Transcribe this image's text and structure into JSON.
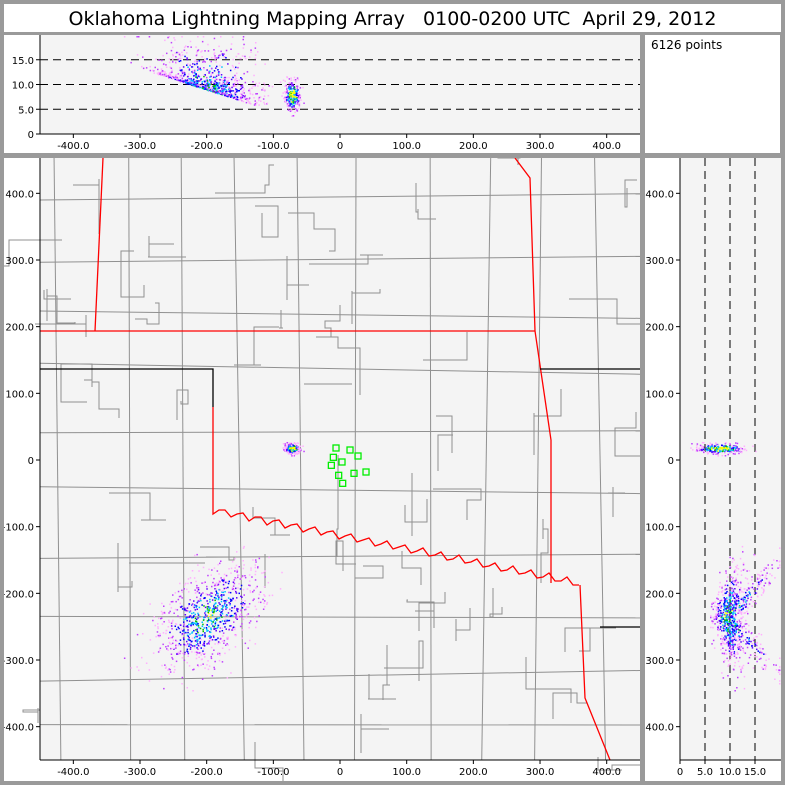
{
  "title": "Oklahoma Lightning Mapping Array   0100-0200 UTC  April 29, 2012",
  "point_count": "6126 points",
  "colors": {
    "density": [
      "#ffb0ff",
      "#c040ff",
      "#6000ff",
      "#0000ff",
      "#00c0ff",
      "#00c000",
      "#ffff00"
    ],
    "state_border": "#ff0000",
    "county_border": "#909090",
    "stations": "#00ee00"
  },
  "chart_data": [
    {
      "type": "scatter",
      "panel": "plan-view",
      "xlim": [
        -450,
        450
      ],
      "ylim": [
        -450,
        450
      ],
      "xticks": [
        "-400.0",
        "-300.0",
        "-200.0",
        "-100.0",
        "0",
        "100.0",
        "200.0",
        "300.0",
        "400.0"
      ],
      "yticks": [
        "-400.0",
        "-300.0",
        "-200.0",
        "-100.0",
        "0",
        "100.0",
        "200.0",
        "300.0",
        "400.0"
      ],
      "clusters": [
        {
          "x_center": -200,
          "y_center": -235,
          "x_spread": 35,
          "y_spread": 40
        },
        {
          "x_center": -72,
          "y_center": 18,
          "x_spread": 6,
          "y_spread": 4
        }
      ],
      "stations": [
        [
          -6,
          18
        ],
        [
          -10,
          4
        ],
        [
          -13,
          -8
        ],
        [
          3,
          -3
        ],
        [
          15,
          15
        ],
        [
          27,
          6
        ],
        [
          21,
          -20
        ],
        [
          39,
          -18
        ],
        [
          4,
          -35
        ],
        [
          -2,
          -23
        ]
      ]
    },
    {
      "type": "scatter",
      "panel": "x-altitude",
      "xlim": [
        -450,
        450
      ],
      "ylim": [
        0,
        20
      ],
      "xticks": [
        "-400.0",
        "-300.0",
        "-200.0",
        "-100.0",
        "0",
        "100.0",
        "200.0",
        "300.0",
        "400.0"
      ],
      "yticks": [
        "0",
        "5.0",
        "10.0",
        "15.0"
      ],
      "dashed_gridlines": [
        5,
        10,
        15
      ]
    },
    {
      "type": "scatter",
      "panel": "altitude-y",
      "xlim": [
        0,
        20
      ],
      "ylim": [
        -450,
        450
      ],
      "xticks": [
        "0",
        "5.0",
        "10.0",
        "15.0"
      ],
      "yticks": [
        "-400.0",
        "-300.0",
        "-200.0",
        "-100.0",
        "0",
        "100.0",
        "200.0",
        "300.0",
        "400.0"
      ],
      "dashed_gridlines": [
        5,
        10,
        15
      ]
    }
  ]
}
